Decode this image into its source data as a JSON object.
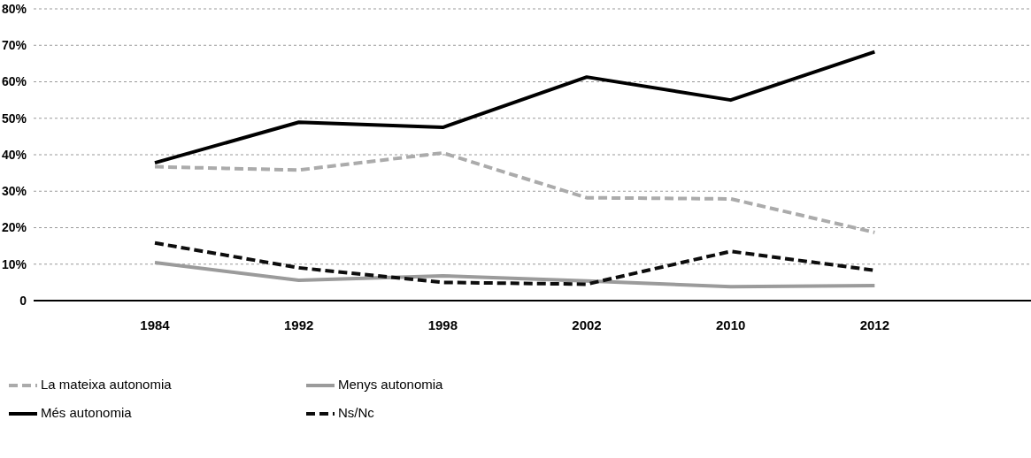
{
  "chart_data": {
    "type": "line",
    "categories": [
      "1984",
      "1992",
      "1998",
      "2002",
      "2010",
      "2012",
      null
    ],
    "series": [
      {
        "name": "Més autonomia",
        "color": "#000000",
        "line_style": "solid",
        "values": [
          37.8,
          48.9,
          47.5,
          61.3,
          55,
          68.2,
          null
        ]
      },
      {
        "name": "Menys autonomia",
        "color": "#9b9b9b",
        "line_style": "solid",
        "values": [
          10.4,
          5.6,
          6.8,
          5.4,
          3.8,
          4.1,
          null
        ]
      },
      {
        "name": "La mateixa autonomia",
        "color": "#ababab",
        "line_style": "dashed",
        "values": [
          36.7,
          35.8,
          40.5,
          28.2,
          27.9,
          18.7,
          null
        ]
      },
      {
        "name": "Ns/Nc",
        "color": "#0d0d0d",
        "line_style": "dashed",
        "values": [
          15.8,
          9,
          5,
          4.5,
          13.5,
          8.3,
          null
        ]
      }
    ],
    "ylim": [
      0,
      80
    ],
    "yticks": [
      0,
      {
        "value": 10,
        "label": "10%"
      },
      {
        "value": 20,
        "label": "20%"
      },
      {
        "value": 30,
        "label": "30%"
      },
      {
        "value": 40,
        "label": "40%"
      },
      {
        "value": 50,
        "label": "50%"
      },
      {
        "value": 60,
        "label": "60%"
      },
      {
        "value": 70,
        "label": "70%"
      },
      {
        "value": 80,
        "label": "80%"
      }
    ],
    "grid": "y",
    "legend": "bottom",
    "marker": "none"
  }
}
